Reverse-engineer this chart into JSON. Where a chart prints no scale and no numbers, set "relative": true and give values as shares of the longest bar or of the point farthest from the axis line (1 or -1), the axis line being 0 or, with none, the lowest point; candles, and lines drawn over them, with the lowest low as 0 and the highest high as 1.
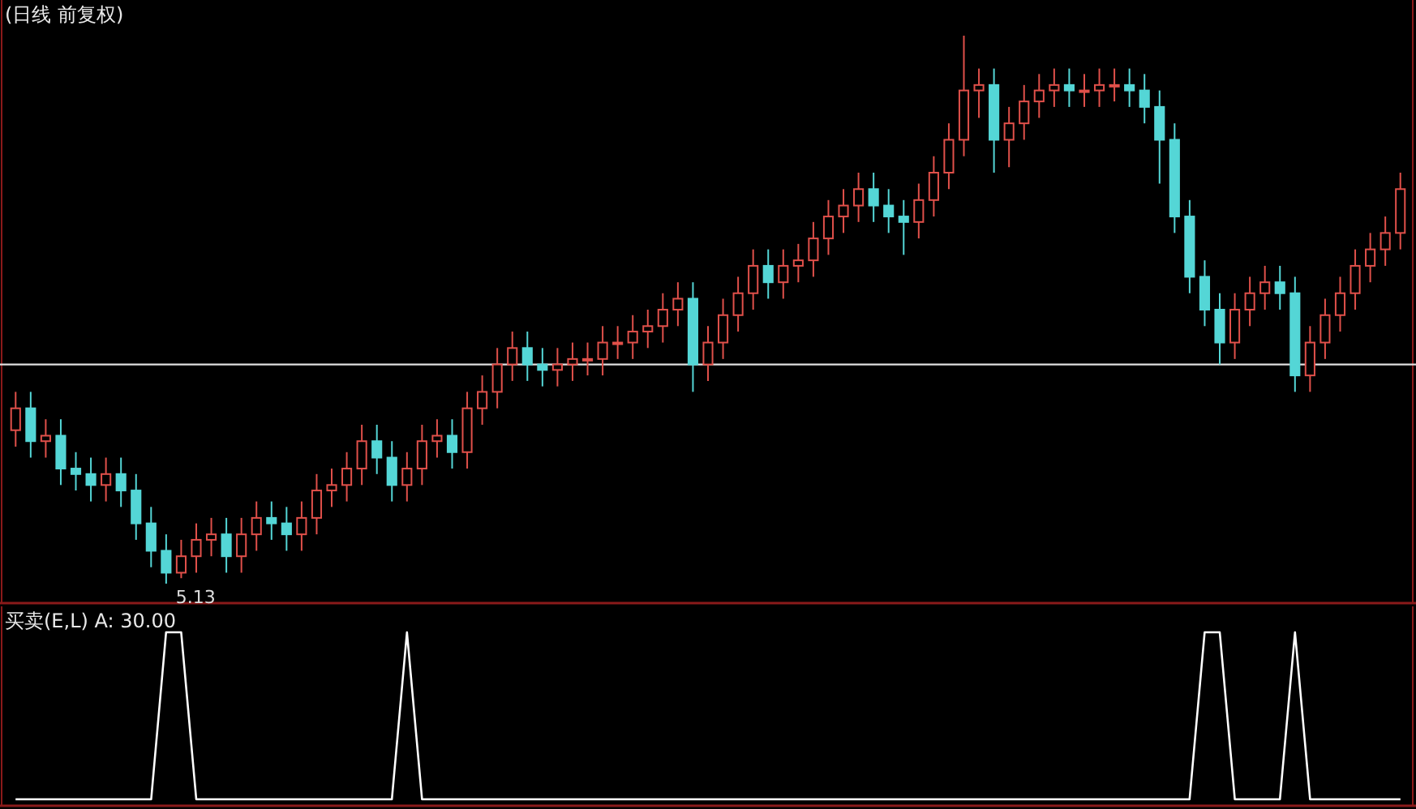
{
  "chart_data": [
    {
      "type": "candlestick",
      "title": "(日线 前复权)",
      "relative": true,
      "categories": [
        null,
        null,
        null,
        null,
        null,
        null,
        null,
        null,
        null,
        null,
        null,
        null,
        null,
        null,
        null,
        null,
        null,
        null,
        null,
        null,
        null,
        null,
        null,
        null,
        null,
        null,
        null,
        null,
        null,
        null,
        null,
        null,
        null,
        null,
        null,
        null,
        null,
        null,
        null,
        null,
        null,
        null,
        null,
        null,
        null,
        null,
        null,
        null,
        null,
        null,
        null,
        null,
        null,
        null,
        null,
        null,
        null,
        null,
        null,
        null,
        null,
        null,
        null,
        null,
        null,
        null,
        null,
        null,
        null,
        null,
        null,
        null,
        null,
        null,
        null,
        null,
        null,
        null,
        null,
        null,
        null,
        null,
        null,
        null,
        null,
        null,
        null,
        null,
        null,
        null,
        null,
        null,
        null
      ],
      "ohlc": [
        [
          0.28,
          0.35,
          0.25,
          0.32
        ],
        [
          0.32,
          0.35,
          0.23,
          0.26
        ],
        [
          0.26,
          0.3,
          0.23,
          0.27
        ],
        [
          0.27,
          0.3,
          0.18,
          0.21
        ],
        [
          0.21,
          0.24,
          0.17,
          0.2
        ],
        [
          0.2,
          0.23,
          0.15,
          0.18
        ],
        [
          0.18,
          0.23,
          0.15,
          0.2
        ],
        [
          0.2,
          0.23,
          0.14,
          0.17
        ],
        [
          0.17,
          0.2,
          0.08,
          0.11
        ],
        [
          0.11,
          0.14,
          0.03,
          0.06
        ],
        [
          0.06,
          0.09,
          0.0,
          0.02
        ],
        [
          0.02,
          0.08,
          0.01,
          0.05
        ],
        [
          0.05,
          0.11,
          0.02,
          0.08
        ],
        [
          0.08,
          0.12,
          0.05,
          0.09
        ],
        [
          0.09,
          0.12,
          0.02,
          0.05
        ],
        [
          0.05,
          0.12,
          0.02,
          0.09
        ],
        [
          0.09,
          0.15,
          0.06,
          0.12
        ],
        [
          0.12,
          0.15,
          0.08,
          0.11
        ],
        [
          0.11,
          0.14,
          0.06,
          0.09
        ],
        [
          0.09,
          0.15,
          0.06,
          0.12
        ],
        [
          0.12,
          0.2,
          0.09,
          0.17
        ],
        [
          0.17,
          0.21,
          0.14,
          0.18
        ],
        [
          0.18,
          0.24,
          0.15,
          0.21
        ],
        [
          0.21,
          0.29,
          0.18,
          0.26
        ],
        [
          0.26,
          0.29,
          0.2,
          0.23
        ],
        [
          0.23,
          0.26,
          0.15,
          0.18
        ],
        [
          0.18,
          0.24,
          0.15,
          0.21
        ],
        [
          0.21,
          0.29,
          0.18,
          0.26
        ],
        [
          0.26,
          0.3,
          0.23,
          0.27
        ],
        [
          0.27,
          0.3,
          0.21,
          0.24
        ],
        [
          0.24,
          0.35,
          0.21,
          0.32
        ],
        [
          0.32,
          0.38,
          0.29,
          0.35
        ],
        [
          0.35,
          0.43,
          0.32,
          0.4
        ],
        [
          0.4,
          0.46,
          0.37,
          0.43
        ],
        [
          0.43,
          0.46,
          0.37,
          0.4
        ],
        [
          0.4,
          0.43,
          0.36,
          0.39
        ],
        [
          0.39,
          0.43,
          0.36,
          0.4
        ],
        [
          0.4,
          0.44,
          0.37,
          0.41
        ],
        [
          0.41,
          0.44,
          0.38,
          0.41
        ],
        [
          0.41,
          0.47,
          0.38,
          0.44
        ],
        [
          0.44,
          0.47,
          0.41,
          0.44
        ],
        [
          0.44,
          0.49,
          0.41,
          0.46
        ],
        [
          0.46,
          0.5,
          0.43,
          0.47
        ],
        [
          0.47,
          0.53,
          0.44,
          0.5
        ],
        [
          0.5,
          0.55,
          0.47,
          0.52
        ],
        [
          0.52,
          0.55,
          0.35,
          0.4
        ],
        [
          0.4,
          0.47,
          0.37,
          0.44
        ],
        [
          0.44,
          0.52,
          0.41,
          0.49
        ],
        [
          0.49,
          0.56,
          0.46,
          0.53
        ],
        [
          0.53,
          0.61,
          0.5,
          0.58
        ],
        [
          0.58,
          0.61,
          0.52,
          0.55
        ],
        [
          0.55,
          0.61,
          0.52,
          0.58
        ],
        [
          0.58,
          0.62,
          0.55,
          0.59
        ],
        [
          0.59,
          0.66,
          0.56,
          0.63
        ],
        [
          0.63,
          0.7,
          0.6,
          0.67
        ],
        [
          0.67,
          0.72,
          0.64,
          0.69
        ],
        [
          0.69,
          0.75,
          0.66,
          0.72
        ],
        [
          0.72,
          0.75,
          0.66,
          0.69
        ],
        [
          0.69,
          0.72,
          0.64,
          0.67
        ],
        [
          0.67,
          0.7,
          0.6,
          0.66
        ],
        [
          0.66,
          0.73,
          0.63,
          0.7
        ],
        [
          0.7,
          0.78,
          0.67,
          0.75
        ],
        [
          0.75,
          0.84,
          0.72,
          0.81
        ],
        [
          0.81,
          1.0,
          0.78,
          0.9
        ],
        [
          0.9,
          0.94,
          0.85,
          0.91
        ],
        [
          0.91,
          0.94,
          0.75,
          0.81
        ],
        [
          0.81,
          0.87,
          0.76,
          0.84
        ],
        [
          0.84,
          0.91,
          0.81,
          0.88
        ],
        [
          0.88,
          0.93,
          0.85,
          0.9
        ],
        [
          0.9,
          0.94,
          0.87,
          0.91
        ],
        [
          0.91,
          0.94,
          0.87,
          0.9
        ],
        [
          0.9,
          0.93,
          0.87,
          0.9
        ],
        [
          0.9,
          0.94,
          0.87,
          0.91
        ],
        [
          0.91,
          0.94,
          0.88,
          0.91
        ],
        [
          0.91,
          0.94,
          0.87,
          0.9
        ],
        [
          0.9,
          0.93,
          0.84,
          0.87
        ],
        [
          0.87,
          0.9,
          0.73,
          0.81
        ],
        [
          0.81,
          0.84,
          0.64,
          0.67
        ],
        [
          0.67,
          0.7,
          0.53,
          0.56
        ],
        [
          0.56,
          0.59,
          0.47,
          0.5
        ],
        [
          0.5,
          0.53,
          0.4,
          0.44
        ],
        [
          0.44,
          0.53,
          0.41,
          0.5
        ],
        [
          0.5,
          0.56,
          0.47,
          0.53
        ],
        [
          0.53,
          0.58,
          0.5,
          0.55
        ],
        [
          0.55,
          0.58,
          0.5,
          0.53
        ],
        [
          0.53,
          0.56,
          0.35,
          0.38
        ],
        [
          0.38,
          0.47,
          0.35,
          0.44
        ],
        [
          0.44,
          0.52,
          0.41,
          0.49
        ],
        [
          0.49,
          0.56,
          0.46,
          0.53
        ],
        [
          0.53,
          0.61,
          0.5,
          0.58
        ],
        [
          0.58,
          0.64,
          0.55,
          0.61
        ],
        [
          0.61,
          0.67,
          0.58,
          0.64
        ],
        [
          0.64,
          0.75,
          0.61,
          0.72
        ]
      ],
      "ref_lines": [
        {
          "axis": "y",
          "value": 0.4,
          "color": "#e0e0e0"
        }
      ],
      "annotations": [
        "5.13"
      ]
    },
    {
      "type": "line",
      "title": "买卖(E,L) A: 30.00",
      "relative": true,
      "color": "#ffffff",
      "categories": [
        null,
        null,
        null,
        null,
        null,
        null,
        null,
        null,
        null,
        null,
        null,
        null,
        null,
        null,
        null,
        null,
        null,
        null,
        null,
        null,
        null,
        null,
        null,
        null,
        null,
        null,
        null,
        null,
        null,
        null,
        null,
        null,
        null,
        null,
        null,
        null,
        null,
        null,
        null,
        null,
        null,
        null,
        null,
        null,
        null,
        null,
        null,
        null,
        null,
        null,
        null,
        null,
        null,
        null,
        null,
        null,
        null,
        null,
        null,
        null,
        null,
        null,
        null,
        null,
        null,
        null,
        null,
        null,
        null,
        null,
        null,
        null,
        null,
        null,
        null,
        null,
        null,
        null,
        null,
        null,
        null,
        null,
        null,
        null,
        null,
        null,
        null,
        null,
        null,
        null,
        null,
        null,
        null
      ],
      "values": [
        0,
        0,
        0,
        0,
        0,
        0,
        0,
        0,
        0,
        0,
        1,
        1,
        0,
        0,
        0,
        0,
        0,
        0,
        0,
        0,
        0,
        0,
        0,
        0,
        0,
        0,
        1,
        0,
        0,
        0,
        0,
        0,
        0,
        0,
        0,
        0,
        0,
        0,
        0,
        0,
        0,
        0,
        0,
        0,
        0,
        0,
        0,
        0,
        0,
        0,
        0,
        0,
        0,
        0,
        0,
        0,
        0,
        0,
        0,
        0,
        0,
        0,
        0,
        0,
        0,
        0,
        0,
        0,
        0,
        0,
        0,
        0,
        0,
        0,
        0,
        0,
        0,
        0,
        0,
        1,
        1,
        0,
        0,
        0,
        0,
        1,
        0,
        0,
        0,
        0,
        0,
        0,
        0
      ]
    }
  ]
}
